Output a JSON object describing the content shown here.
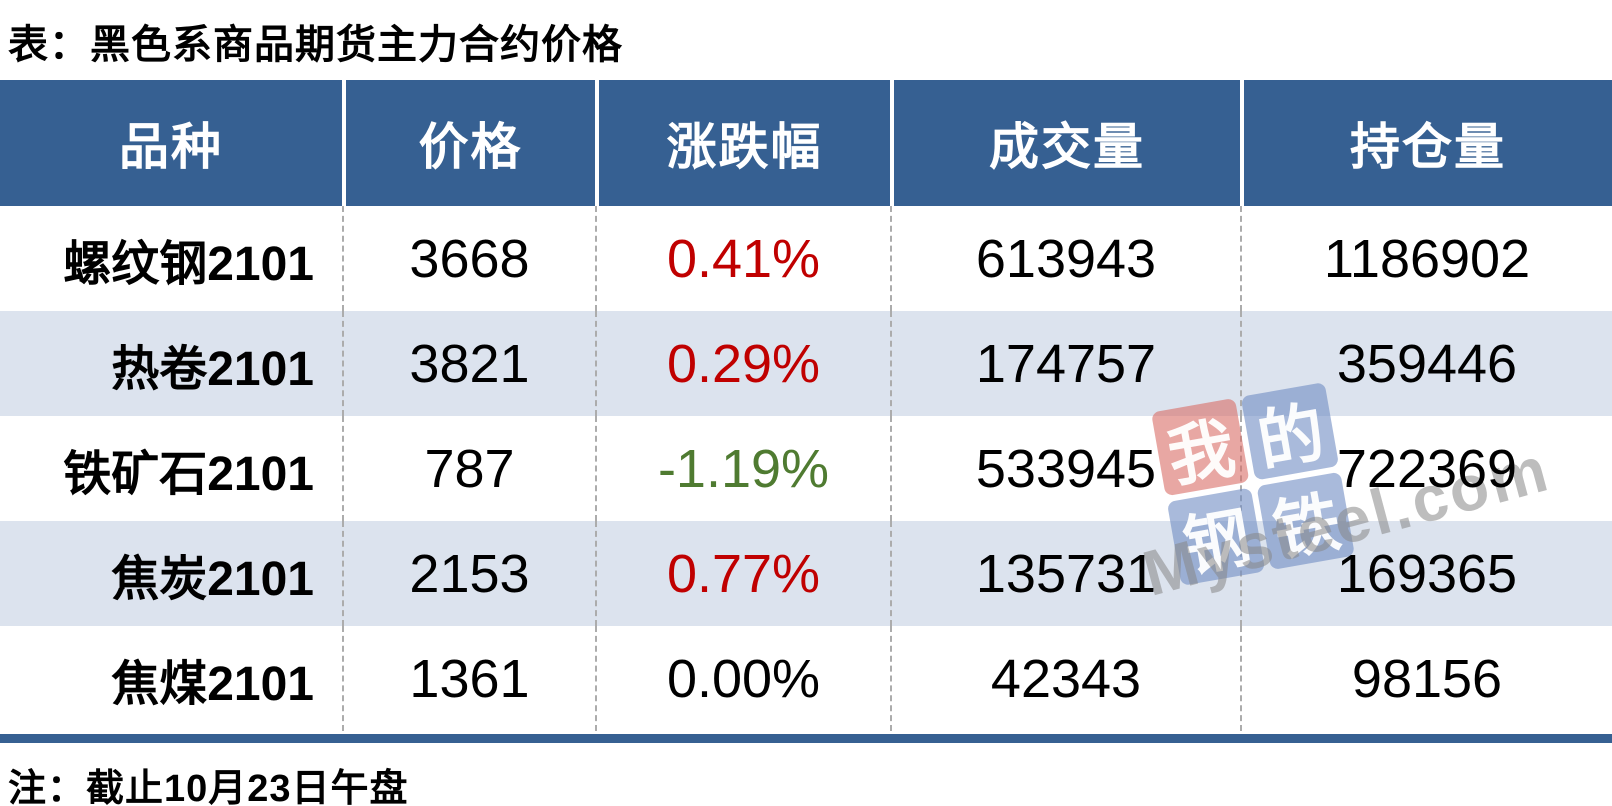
{
  "title": "表：黑色系商品期货主力合约价格",
  "note": "注：截止10月23日午盘",
  "colors": {
    "header_bg": "#366092",
    "alt_row_bg": "#DCE3EE",
    "up_red": "#C00000",
    "down_green": "#4F7B31",
    "bottom_bar": "#366092"
  },
  "table": {
    "headers": [
      "品种",
      "价格",
      "涨跌幅",
      "成交量",
      "持仓量"
    ],
    "rows": [
      {
        "name": "螺纹钢2101",
        "price": "3668",
        "change": "0.41%",
        "change_dir": "up",
        "volume": "613943",
        "open_interest": "1186902"
      },
      {
        "name": "热卷2101",
        "price": "3821",
        "change": "0.29%",
        "change_dir": "up",
        "volume": "174757",
        "open_interest": "359446"
      },
      {
        "name": "铁矿石2101",
        "price": "787",
        "change": "-1.19%",
        "change_dir": "down",
        "volume": "533945",
        "open_interest": "722369"
      },
      {
        "name": "焦炭2101",
        "price": "2153",
        "change": "0.77%",
        "change_dir": "up",
        "volume": "135731",
        "open_interest": "169365"
      },
      {
        "name": "焦煤2101",
        "price": "1361",
        "change": "0.00%",
        "change_dir": "flat",
        "volume": "42343",
        "open_interest": "98156"
      }
    ]
  },
  "watermark": {
    "squares": [
      {
        "char": "我",
        "color": "red"
      },
      {
        "char": "的",
        "color": "blue"
      },
      {
        "char": "钢",
        "color": "blue"
      },
      {
        "char": "铁",
        "color": "blue"
      }
    ],
    "text": "Mysteel.com"
  },
  "chart_data": {
    "type": "table",
    "title": "表：黑色系商品期货主力合约价格",
    "columns": [
      "品种",
      "价格",
      "涨跌幅",
      "成交量",
      "持仓量"
    ],
    "rows": [
      [
        "螺纹钢2101",
        3668,
        "0.41%",
        613943,
        1186902
      ],
      [
        "热卷2101",
        3821,
        "0.29%",
        174757,
        359446
      ],
      [
        "铁矿石2101",
        787,
        "-1.19%",
        533945,
        722369
      ],
      [
        "焦炭2101",
        2153,
        "0.77%",
        135731,
        169365
      ],
      [
        "焦煤2101",
        1361,
        "0.00%",
        42343,
        98156
      ]
    ],
    "note": "注：截止10月23日午盘"
  }
}
